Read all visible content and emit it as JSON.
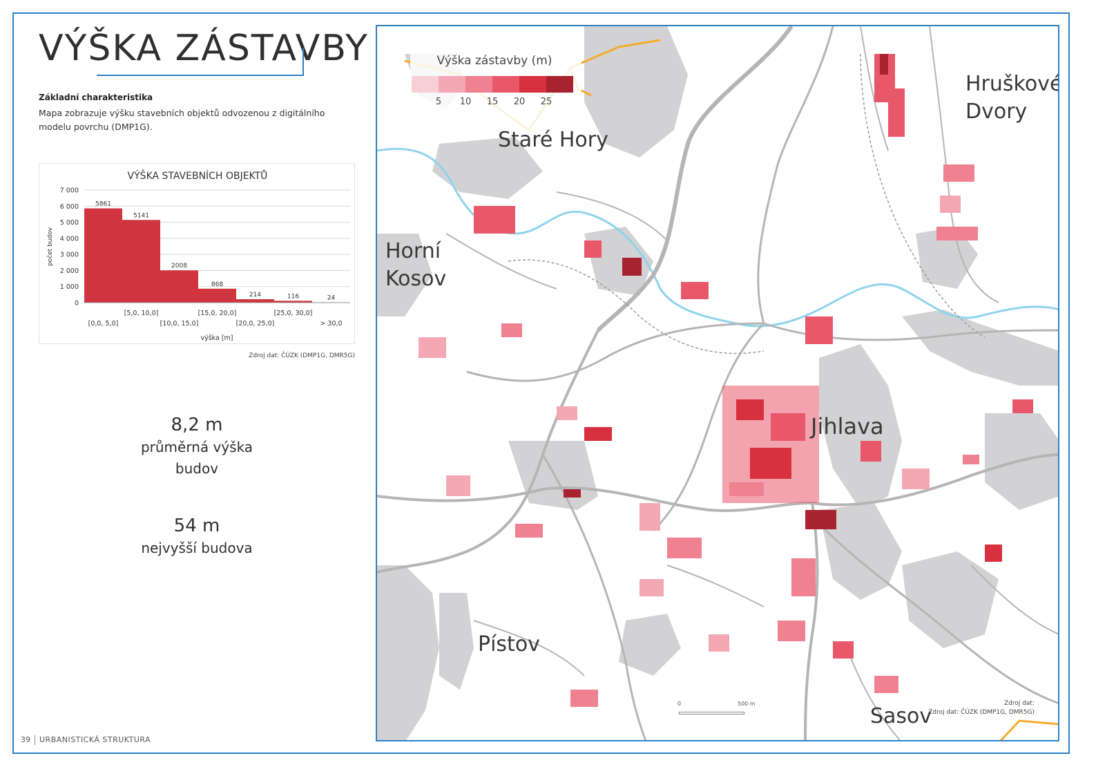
{
  "title": "VÝŠKA ZÁSTAVBY",
  "characteristics": {
    "heading": "Základní charakteristika",
    "text": "Mapa zobrazuje výšku stavebních objektů odvozenou z digitálního modelu povrchu (DMP1G)."
  },
  "chart_data": {
    "type": "bar",
    "title": "VÝŠKA STAVEBNÍCH OBJEKTŮ",
    "xlabel": "výška [m]",
    "ylabel": "počet budov",
    "categories": [
      "[0,0, 5,0]",
      "[5,0, 10,0]",
      "[10,0, 15,0]",
      "[15,0, 20,0]",
      "[20,0, 25,0]",
      "[25,0, 30,0]",
      "> 30,0"
    ],
    "values": [
      5861,
      5141,
      2008,
      868,
      214,
      116,
      24
    ],
    "value_labels": [
      "5861",
      "5141",
      "2008",
      "868",
      "214",
      "116",
      "24"
    ],
    "ylim": [
      0,
      7000
    ],
    "yticks": [
      0,
      1000,
      2000,
      3000,
      4000,
      5000,
      6000,
      7000
    ],
    "ytick_labels": [
      "0",
      "1 000",
      "2 000",
      "3 000",
      "4 000",
      "5 000",
      "6 000",
      "7 000"
    ],
    "bar_color": "#d0343f",
    "grid": true
  },
  "chart_source": "Zdroj dat: ČÚZK (DMP1G, DMR5G)",
  "stats": [
    {
      "value": "8,2 m",
      "label_lines": [
        "průměrná výška",
        "budov"
      ]
    },
    {
      "value": "54 m",
      "label_lines": [
        "nejvyšší budova"
      ]
    }
  ],
  "footer": {
    "page": "39",
    "section": "URBANISTICKÁ STRUKTURA"
  },
  "map": {
    "legend": {
      "title": "Výška zástavby (m)",
      "colors": [
        "#f7d0d6",
        "#f4a8b3",
        "#ef8190",
        "#e9576a",
        "#d8303f",
        "#a6232f"
      ],
      "ticks": [
        "5",
        "10",
        "15",
        "20",
        "25"
      ]
    },
    "places": {
      "stare_hory": "Staré Hory",
      "hruskove_dvory": [
        "Hruškové",
        "Dvory"
      ],
      "horni_kosov": [
        "Horní",
        "Kosov"
      ],
      "jihlava": "Jihlava",
      "pistov": "Pístov",
      "sasov": "Sasov"
    },
    "scale": {
      "start": "0",
      "end": "500 m"
    },
    "source_lines": [
      "Zdroj dat:",
      "Zdroj dat: ČÚZK (DMP1G, DMR5G)"
    ],
    "colors": {
      "road": "#b5b5b5",
      "river": "#8fd3ec",
      "forest": "#d2d2d4",
      "boundary": "#f4ac2a"
    }
  }
}
